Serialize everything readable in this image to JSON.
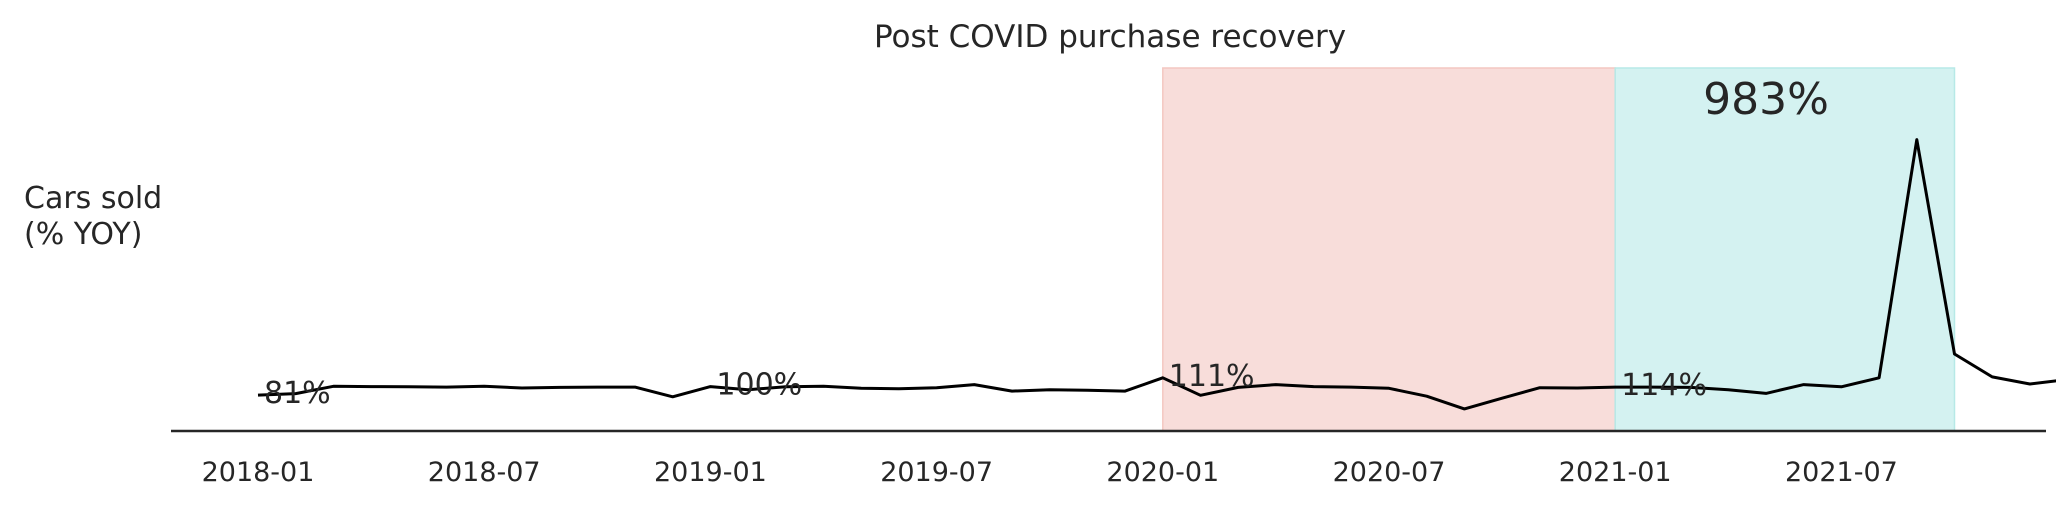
{
  "chart_data": {
    "type": "line",
    "title": "Post COVID purchase recovery",
    "ylabel_lines": [
      "Cars sold",
      "(% YOY)"
    ],
    "x_tick_labels": [
      "2018-01",
      "2018-07",
      "2019-01",
      "2019-07",
      "2020-01",
      "2020-07",
      "2021-01",
      "2021-07"
    ],
    "x_start": "2018-01",
    "ylim": [
      0,
      1100
    ],
    "grid": false,
    "line_color": "#000000",
    "spans": [
      {
        "start": "2020-01",
        "end": "2021-01",
        "color": "#f4c7c1"
      },
      {
        "start": "2021-01",
        "end": "2021-10",
        "color": "#b7e9e7"
      }
    ],
    "series": [
      {
        "values": [
          81,
          86,
          112,
          111,
          110,
          109,
          112,
          106,
          108,
          109,
          109,
          75,
          111,
          100,
          110,
          112,
          105,
          103,
          107,
          118,
          95,
          100,
          98,
          95,
          142,
          80,
          108,
          118,
          111,
          109,
          105,
          77,
          32,
          70,
          107,
          106,
          109,
          109,
          108,
          100,
          87,
          118,
          110,
          142,
          983,
          226,
          145,
          120,
          136,
          85
        ]
      }
    ],
    "annotations": [
      {
        "x": "2018-01",
        "text": "81%",
        "size": "normal"
      },
      {
        "x": "2019-01",
        "text": "100%",
        "size": "normal"
      },
      {
        "x": "2020-01",
        "text": "111%",
        "size": "normal"
      },
      {
        "x": "2021-01",
        "text": "114%",
        "size": "normal"
      },
      {
        "x": "2021-05",
        "text": "983%",
        "size": "large"
      }
    ]
  }
}
